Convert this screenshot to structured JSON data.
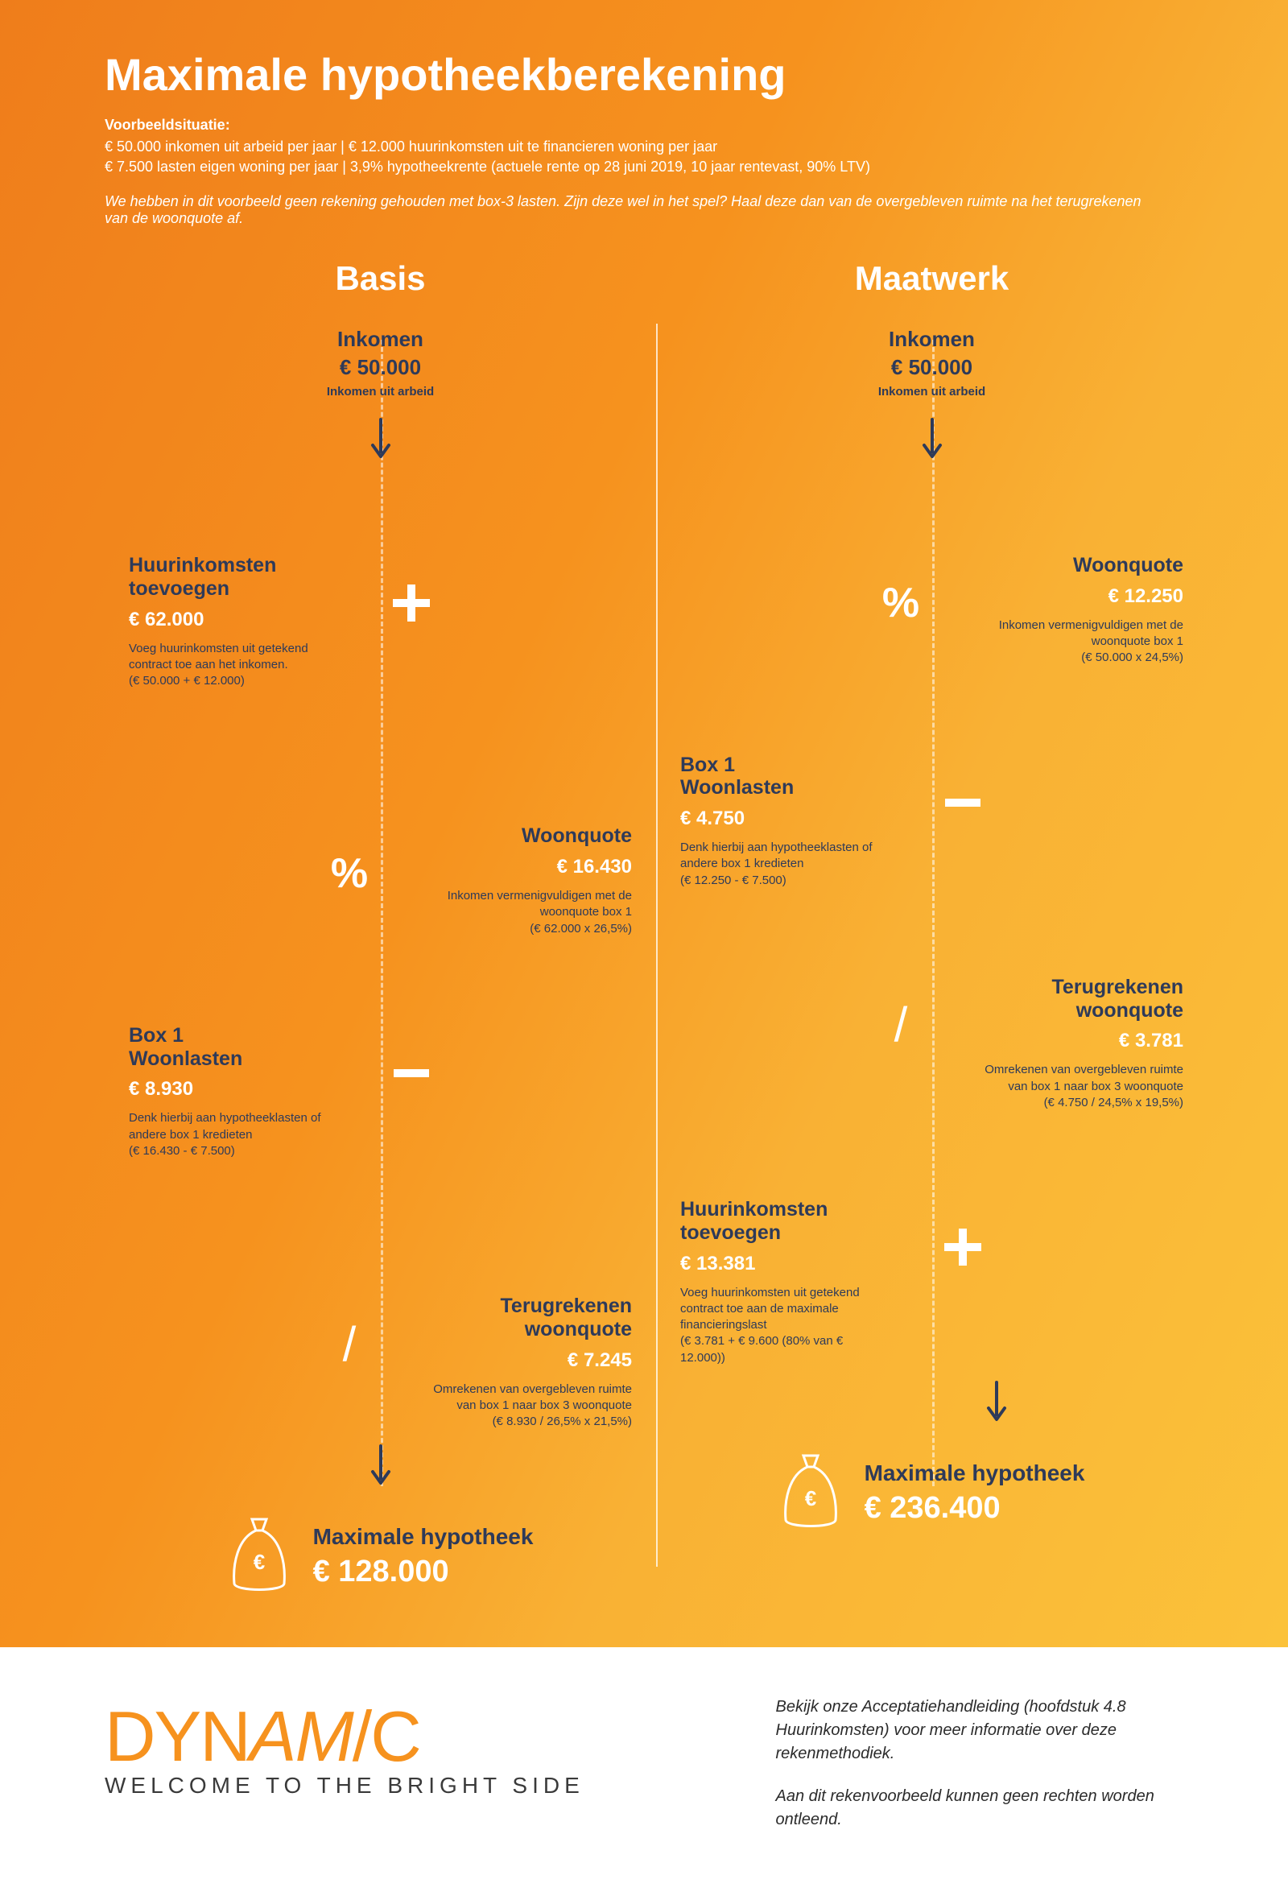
{
  "colors": {
    "gradient_from": "#ef7d1b",
    "gradient_mid": "#f9b134",
    "gradient_to": "#fbc23a",
    "heading_navy": "#2e3a59",
    "white": "#ffffff",
    "logo_orange": "#f6921e",
    "footer_text": "#2b2b2b"
  },
  "header": {
    "title": "Maximale hypotheekberekening",
    "situation_label": "Voorbeeldsituatie:",
    "situation_line1": "€ 50.000 inkomen uit arbeid per jaar | € 12.000 huurinkomsten uit te financieren woning per jaar",
    "situation_line2": "€ 7.500 lasten eigen woning per jaar | 3,9% hypotheekrente (actuele rente op 28 juni 2019, 10 jaar rentevast, 90% LTV)",
    "disclaimer": "We hebben in dit voorbeeld geen rekening gehouden met box-3 lasten. Zijn deze wel in het spel? Haal deze dan van de overgebleven ruimte na het terugrekenen van de woonquote af."
  },
  "columns": {
    "basis": {
      "title": "Basis",
      "start": {
        "heading": "Inkomen",
        "value": "€ 50.000",
        "sub": "Inkomen uit arbeid"
      },
      "steps": [
        {
          "side": "left",
          "op": "plus",
          "heading": "Huurinkomsten toevoegen",
          "value": "€ 62.000",
          "sub": "Voeg huurinkomsten uit getekend contract toe aan het inkomen.\n(€ 50.000 + € 12.000)"
        },
        {
          "side": "right",
          "op": "percent",
          "heading": "Woonquote",
          "value": "€ 16.430",
          "sub": "Inkomen vermenigvuldigen met de woonquote box 1\n(€ 62.000 x 26,5%)"
        },
        {
          "side": "left",
          "op": "minus",
          "heading": "Box 1\nWoonlasten",
          "value": "€ 8.930",
          "sub": "Denk hierbij aan hypotheeklasten of andere box 1 kredieten\n(€ 16.430 - € 7.500)"
        },
        {
          "side": "right",
          "op": "divide",
          "heading": "Terugrekenen woonquote",
          "value": "€ 7.245",
          "sub": "Omrekenen van overgebleven ruimte van box 1 naar box 3 woonquote\n(€ 8.930 / 26,5% x 21,5%)"
        }
      ],
      "result": {
        "heading": "Maximale hypotheek",
        "value": "€ 128.000"
      }
    },
    "maatwerk": {
      "title": "Maatwerk",
      "start": {
        "heading": "Inkomen",
        "value": "€ 50.000",
        "sub": "Inkomen uit arbeid"
      },
      "steps": [
        {
          "side": "right",
          "op": "percent",
          "heading": "Woonquote",
          "value": "€ 12.250",
          "sub": "Inkomen vermenigvuldigen met de woonquote box 1\n(€ 50.000 x 24,5%)"
        },
        {
          "side": "left",
          "op": "minus",
          "heading": "Box 1\nWoonlasten",
          "value": "€ 4.750",
          "sub": "Denk hierbij aan hypotheeklasten of andere box 1 kredieten\n(€ 12.250 - € 7.500)"
        },
        {
          "side": "right",
          "op": "divide",
          "heading": "Terugrekenen woonquote",
          "value": "€ 3.781",
          "sub": "Omrekenen van overgebleven ruimte van box 1 naar box 3 woonquote\n(€ 4.750 / 24,5% x 19,5%)"
        },
        {
          "side": "left",
          "op": "plus",
          "heading": "Huurinkomsten toevoegen",
          "value": "€ 13.381",
          "sub": "Voeg huurinkomsten uit getekend contract toe aan de maximale financieringslast\n(€ 3.781 + € 9.600 (80% van € 12.000))"
        }
      ],
      "result": {
        "heading": "Maximale hypotheek",
        "value": "€ 236.400"
      }
    }
  },
  "footer": {
    "logo_text": "DYNAMIC",
    "tagline": "WELCOME TO THE BRIGHT SIDE",
    "note1": "Bekijk onze Acceptatiehandleiding (hoofdstuk 4.8 Huurinkomsten) voor meer informatie over deze rekenmethodiek.",
    "note2": "Aan dit rekenvoorbeeld kunnen geen rechten worden ontleend."
  }
}
